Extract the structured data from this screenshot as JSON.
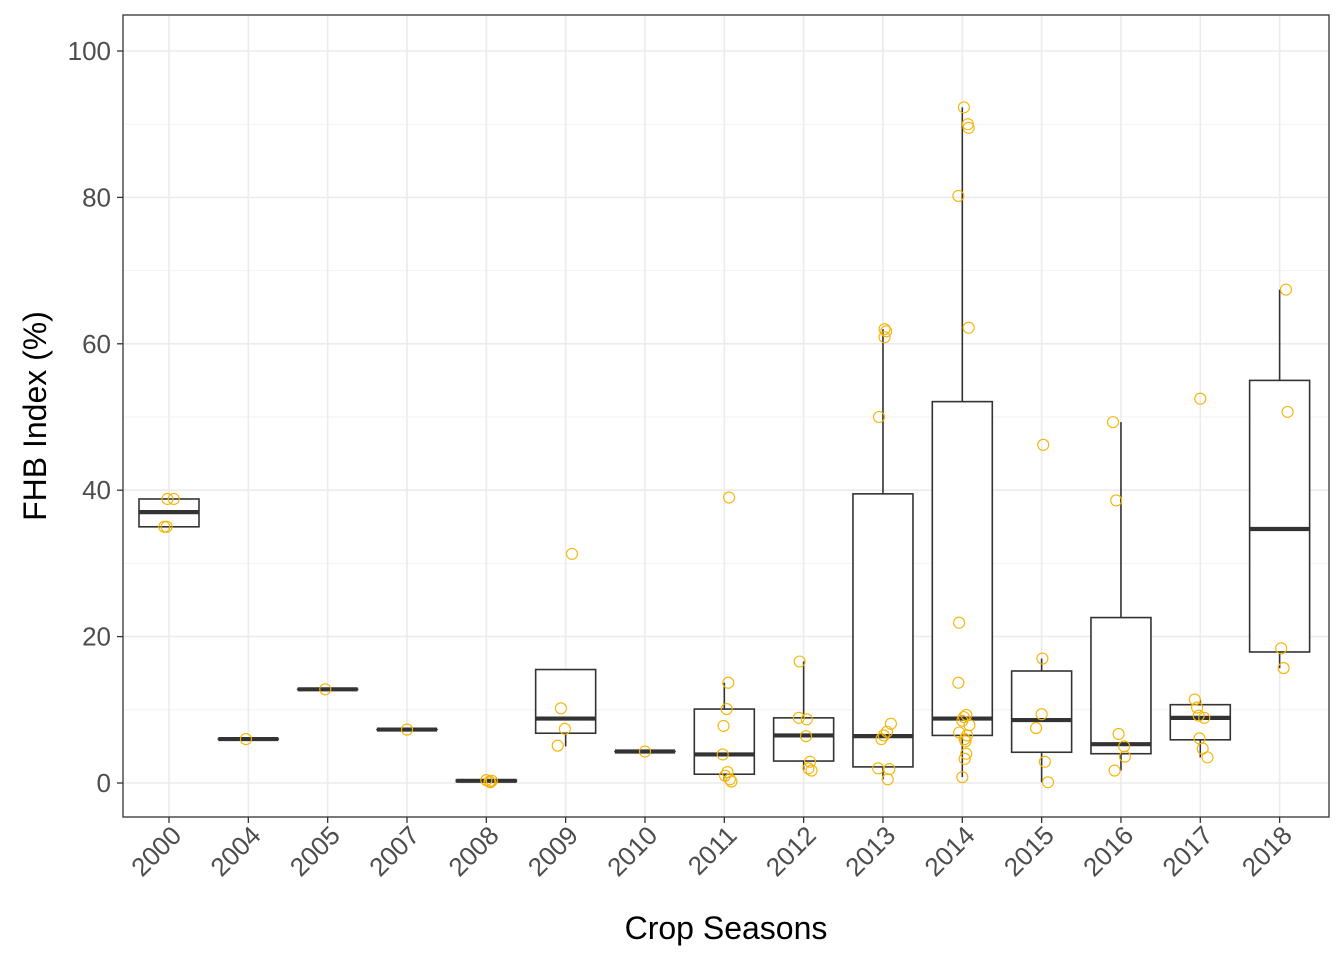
{
  "chart_data": {
    "type": "boxplot",
    "title": "",
    "xlabel": "Crop Seasons",
    "ylabel": "FHB Index (%)",
    "ylim": [
      -5,
      105
    ],
    "y_ticks": [
      0,
      20,
      40,
      60,
      80,
      100
    ],
    "grid": true,
    "colors": {
      "points": "#F5B301",
      "box": "#333333",
      "grid": "#EBEBEB",
      "panel_border": "#333333"
    },
    "categories": [
      "2000",
      "2004",
      "2005",
      "2007",
      "2008",
      "2009",
      "2010",
      "2011",
      "2012",
      "2013",
      "2014",
      "2015",
      "2016",
      "2017",
      "2018"
    ],
    "boxes": [
      {
        "category": "2000",
        "q1": 35.0,
        "median": 37.0,
        "q3": 38.8,
        "whisker_low": 35.0,
        "whisker_high": 38.8
      },
      {
        "category": "2004",
        "q1": 6.0,
        "median": 6.0,
        "q3": 6.0,
        "whisker_low": 6.0,
        "whisker_high": 6.0
      },
      {
        "category": "2005",
        "q1": 12.8,
        "median": 12.8,
        "q3": 12.8,
        "whisker_low": 12.8,
        "whisker_high": 12.8
      },
      {
        "category": "2007",
        "q1": 7.3,
        "median": 7.3,
        "q3": 7.3,
        "whisker_low": 7.3,
        "whisker_high": 7.3
      },
      {
        "category": "2008",
        "q1": 0.2,
        "median": 0.3,
        "q3": 0.4,
        "whisker_low": 0.2,
        "whisker_high": 0.4
      },
      {
        "category": "2009",
        "q1": 6.8,
        "median": 8.8,
        "q3": 15.5,
        "whisker_low": 5.0,
        "whisker_high": 15.5
      },
      {
        "category": "2010",
        "q1": 4.3,
        "median": 4.3,
        "q3": 4.3,
        "whisker_low": 4.3,
        "whisker_high": 4.3
      },
      {
        "category": "2011",
        "q1": 1.2,
        "median": 3.9,
        "q3": 10.1,
        "whisker_low": 0.3,
        "whisker_high": 13.7
      },
      {
        "category": "2012",
        "q1": 3.0,
        "median": 6.5,
        "q3": 8.9,
        "whisker_low": 1.8,
        "whisker_high": 16.6
      },
      {
        "category": "2013",
        "q1": 2.2,
        "median": 6.4,
        "q3": 39.5,
        "whisker_low": 0.5,
        "whisker_high": 62.0
      },
      {
        "category": "2014",
        "q1": 6.5,
        "median": 8.8,
        "q3": 52.1,
        "whisker_low": 0.8,
        "whisker_high": 92.3
      },
      {
        "category": "2015",
        "q1": 4.2,
        "median": 8.6,
        "q3": 15.3,
        "whisker_low": 0.1,
        "whisker_high": 17.0
      },
      {
        "category": "2016",
        "q1": 4.0,
        "median": 5.3,
        "q3": 22.6,
        "whisker_low": 1.7,
        "whisker_high": 49.3
      },
      {
        "category": "2017",
        "q1": 5.9,
        "median": 8.9,
        "q3": 10.7,
        "whisker_low": 3.5,
        "whisker_high": 11.4
      },
      {
        "category": "2018",
        "q1": 17.9,
        "median": 34.7,
        "q3": 55.0,
        "whisker_low": 15.7,
        "whisker_high": 67.4
      }
    ],
    "points": [
      {
        "category": "2000",
        "jitter": -0.06,
        "y": 35.0
      },
      {
        "category": "2000",
        "jitter": 0.06,
        "y": 38.8
      },
      {
        "category": "2000",
        "jitter": -0.02,
        "y": 38.8
      },
      {
        "category": "2000",
        "jitter": -0.03,
        "y": 35.0
      },
      {
        "category": "2004",
        "jitter": -0.03,
        "y": 6.0
      },
      {
        "category": "2005",
        "jitter": -0.03,
        "y": 12.8
      },
      {
        "category": "2007",
        "jitter": 0.0,
        "y": 7.3
      },
      {
        "category": "2008",
        "jitter": 0.04,
        "y": 0.2
      },
      {
        "category": "2008",
        "jitter": 0.07,
        "y": 0.3
      },
      {
        "category": "2008",
        "jitter": 0.0,
        "y": 0.4
      },
      {
        "category": "2008",
        "jitter": 0.05,
        "y": 0.1
      },
      {
        "category": "2009",
        "jitter": 0.08,
        "y": 31.3
      },
      {
        "category": "2009",
        "jitter": -0.06,
        "y": 10.2
      },
      {
        "category": "2009",
        "jitter": -0.01,
        "y": 7.4
      },
      {
        "category": "2009",
        "jitter": -0.1,
        "y": 5.1
      },
      {
        "category": "2010",
        "jitter": 0.0,
        "y": 4.3
      },
      {
        "category": "2011",
        "jitter": 0.06,
        "y": 39.0
      },
      {
        "category": "2011",
        "jitter": 0.05,
        "y": 13.7
      },
      {
        "category": "2011",
        "jitter": 0.03,
        "y": 10.1
      },
      {
        "category": "2011",
        "jitter": -0.01,
        "y": 7.8
      },
      {
        "category": "2011",
        "jitter": -0.02,
        "y": 3.9
      },
      {
        "category": "2011",
        "jitter": 0.04,
        "y": 1.5
      },
      {
        "category": "2011",
        "jitter": 0.01,
        "y": 1.0
      },
      {
        "category": "2011",
        "jitter": 0.07,
        "y": 0.5
      },
      {
        "category": "2011",
        "jitter": 0.09,
        "y": 0.2
      },
      {
        "category": "2012",
        "jitter": -0.05,
        "y": 16.6
      },
      {
        "category": "2012",
        "jitter": -0.06,
        "y": 8.9
      },
      {
        "category": "2012",
        "jitter": 0.04,
        "y": 8.7
      },
      {
        "category": "2012",
        "jitter": 0.03,
        "y": 6.4
      },
      {
        "category": "2012",
        "jitter": 0.08,
        "y": 2.9
      },
      {
        "category": "2012",
        "jitter": 0.06,
        "y": 2.0
      },
      {
        "category": "2012",
        "jitter": 0.1,
        "y": 1.7
      },
      {
        "category": "2013",
        "jitter": 0.02,
        "y": 62.0
      },
      {
        "category": "2013",
        "jitter": 0.04,
        "y": 61.7
      },
      {
        "category": "2013",
        "jitter": 0.02,
        "y": 60.9
      },
      {
        "category": "2013",
        "jitter": -0.05,
        "y": 50.0
      },
      {
        "category": "2013",
        "jitter": 0.1,
        "y": 8.1
      },
      {
        "category": "2013",
        "jitter": 0.05,
        "y": 7.0
      },
      {
        "category": "2013",
        "jitter": 0.01,
        "y": 6.5
      },
      {
        "category": "2013",
        "jitter": -0.02,
        "y": 6.0
      },
      {
        "category": "2013",
        "jitter": -0.06,
        "y": 2.0
      },
      {
        "category": "2013",
        "jitter": 0.08,
        "y": 1.9
      },
      {
        "category": "2013",
        "jitter": 0.06,
        "y": 0.5
      },
      {
        "category": "2014",
        "jitter": 0.02,
        "y": 92.3
      },
      {
        "category": "2014",
        "jitter": 0.07,
        "y": 90.0
      },
      {
        "category": "2014",
        "jitter": 0.08,
        "y": 89.5
      },
      {
        "category": "2014",
        "jitter": -0.05,
        "y": 80.2
      },
      {
        "category": "2014",
        "jitter": 0.08,
        "y": 62.2
      },
      {
        "category": "2014",
        "jitter": -0.04,
        "y": 21.9
      },
      {
        "category": "2014",
        "jitter": -0.05,
        "y": 13.7
      },
      {
        "category": "2014",
        "jitter": 0.05,
        "y": 9.3
      },
      {
        "category": "2014",
        "jitter": 0.02,
        "y": 9.0
      },
      {
        "category": "2014",
        "jitter": 0.0,
        "y": 8.5
      },
      {
        "category": "2014",
        "jitter": 0.09,
        "y": 7.9
      },
      {
        "category": "2014",
        "jitter": -0.04,
        "y": 6.9
      },
      {
        "category": "2014",
        "jitter": 0.06,
        "y": 6.5
      },
      {
        "category": "2014",
        "jitter": 0.03,
        "y": 6.0
      },
      {
        "category": "2014",
        "jitter": 0.04,
        "y": 5.7
      },
      {
        "category": "2014",
        "jitter": 0.05,
        "y": 4.0
      },
      {
        "category": "2014",
        "jitter": 0.03,
        "y": 3.3
      },
      {
        "category": "2014",
        "jitter": 0.0,
        "y": 0.8
      },
      {
        "category": "2015",
        "jitter": 0.02,
        "y": 46.2
      },
      {
        "category": "2015",
        "jitter": 0.01,
        "y": 17.0
      },
      {
        "category": "2015",
        "jitter": 0.0,
        "y": 9.4
      },
      {
        "category": "2015",
        "jitter": -0.07,
        "y": 7.5
      },
      {
        "category": "2015",
        "jitter": 0.04,
        "y": 2.9
      },
      {
        "category": "2015",
        "jitter": 0.08,
        "y": 0.1
      },
      {
        "category": "2016",
        "jitter": -0.1,
        "y": 49.3
      },
      {
        "category": "2016",
        "jitter": -0.06,
        "y": 38.6
      },
      {
        "category": "2016",
        "jitter": -0.03,
        "y": 6.7
      },
      {
        "category": "2016",
        "jitter": 0.04,
        "y": 5.0
      },
      {
        "category": "2016",
        "jitter": 0.05,
        "y": 3.6
      },
      {
        "category": "2016",
        "jitter": -0.08,
        "y": 1.7
      },
      {
        "category": "2017",
        "jitter": 0.0,
        "y": 52.5
      },
      {
        "category": "2017",
        "jitter": -0.07,
        "y": 11.4
      },
      {
        "category": "2017",
        "jitter": -0.04,
        "y": 10.3
      },
      {
        "category": "2017",
        "jitter": -0.02,
        "y": 9.2
      },
      {
        "category": "2017",
        "jitter": 0.05,
        "y": 8.9
      },
      {
        "category": "2017",
        "jitter": -0.01,
        "y": 6.1
      },
      {
        "category": "2017",
        "jitter": 0.03,
        "y": 4.7
      },
      {
        "category": "2017",
        "jitter": 0.09,
        "y": 3.5
      },
      {
        "category": "2018",
        "jitter": 0.08,
        "y": 67.4
      },
      {
        "category": "2018",
        "jitter": 0.1,
        "y": 50.7
      },
      {
        "category": "2018",
        "jitter": 0.02,
        "y": 18.4
      },
      {
        "category": "2018",
        "jitter": 0.05,
        "y": 15.7
      }
    ]
  }
}
